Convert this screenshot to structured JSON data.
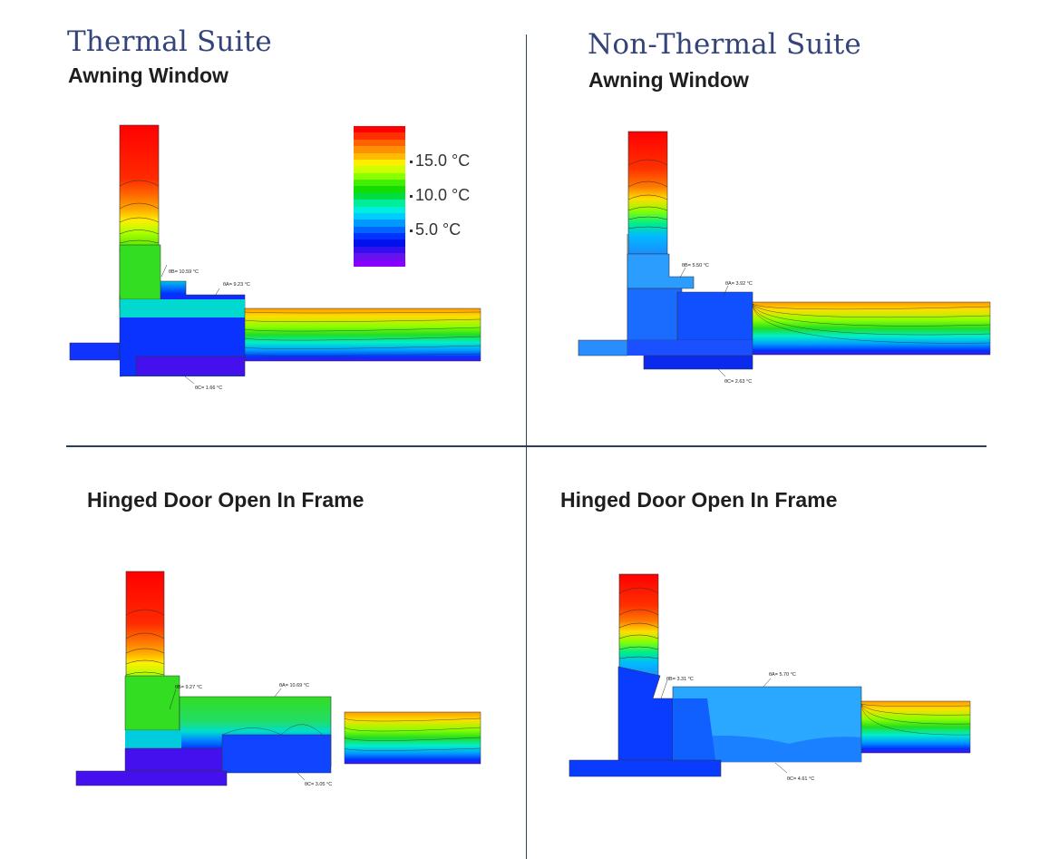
{
  "sections": {
    "thermal": {
      "title": "Thermal Suite",
      "awning_label": "Awning Window",
      "door_label": "Hinged Door Open In Frame"
    },
    "non_thermal": {
      "title": "Non-Thermal Suite",
      "awning_label": "Awning Window",
      "door_label": "Hinged Door Open In Frame"
    }
  },
  "legend": {
    "labels": [
      "15.0 °C",
      "10.0 °C",
      "5.0 °C"
    ],
    "colors": [
      "#ff0000",
      "#ff3000",
      "#ff6000",
      "#ff9000",
      "#ffbb00",
      "#ffee00",
      "#ccff00",
      "#88ff00",
      "#44ee00",
      "#11dd00",
      "#00dd44",
      "#00ee99",
      "#00eedd",
      "#00ccff",
      "#0099ff",
      "#0066ff",
      "#0033ff",
      "#0011ee",
      "#3311ee",
      "#6611ee",
      "#8800ff"
    ]
  },
  "diagrams": {
    "thermal_awning": {
      "annotations": [
        "θB= 10.59 °C",
        "θA= 9.23 °C",
        "θC= 1.66 °C"
      ]
    },
    "non_thermal_awning": {
      "annotations": [
        "θB= 5.50 °C",
        "θA= 3.92 °C",
        "θC= 2.63 °C"
      ]
    },
    "thermal_door": {
      "annotations": [
        "θB= 9.27 °C",
        "θA= 10.69 °C",
        "θC= 3.05 °C"
      ]
    },
    "non_thermal_door": {
      "annotations": [
        "θB= 3.31 °C",
        "θA= 5.70 °C",
        "θC= 4.61 °C"
      ]
    }
  }
}
